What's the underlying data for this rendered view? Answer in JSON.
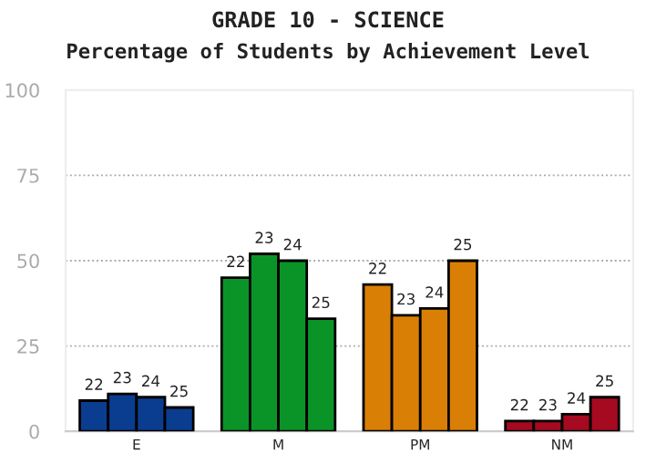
{
  "chart_data": {
    "type": "bar",
    "title": "GRADE 10 - SCIENCE",
    "subtitle": "Percentage of Students by Achievement Level",
    "categories": [
      "E",
      "M",
      "PM",
      "NM"
    ],
    "series": [
      {
        "name": "22",
        "colors": [
          "#0a3d8f",
          "#0a9428",
          "#d97f06",
          "#a50a20"
        ],
        "values": [
          9,
          45,
          43,
          3
        ]
      },
      {
        "name": "23",
        "colors": [
          "#0a3d8f",
          "#0a9428",
          "#d97f06",
          "#a50a20"
        ],
        "values": [
          11,
          52,
          34,
          3
        ]
      },
      {
        "name": "24",
        "colors": [
          "#0a3d8f",
          "#0a9428",
          "#d97f06",
          "#a50a20"
        ],
        "values": [
          10,
          50,
          36,
          5
        ]
      },
      {
        "name": "25",
        "colors": [
          "#0a3d8f",
          "#0a9428",
          "#d97f06",
          "#a50a20"
        ],
        "values": [
          7,
          33,
          50,
          10
        ]
      }
    ],
    "ylim": [
      0,
      100
    ],
    "yticks": [
      0,
      25,
      50,
      75,
      100
    ],
    "grid": "y",
    "legend": false
  }
}
